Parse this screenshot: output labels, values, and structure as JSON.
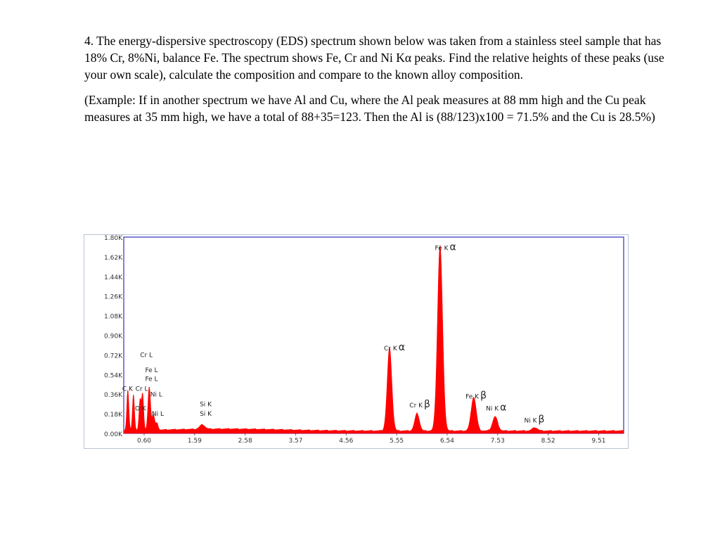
{
  "question": {
    "paragraph1": "4. The energy-dispersive spectroscopy (EDS) spectrum shown below was taken from a stainless steel sample that has 18% Cr, 8%Ni, balance Fe.  The spectrum shows Fe, Cr and Ni Kα peaks.  Find the relative heights of these peaks (use your own scale), calculate the composition and compare to the known alloy composition.",
    "paragraph2": "(Example: If in another spectrum we have Al and Cu, where the Al peak measures at 88 mm high and the Cu peak measures at 35 mm high, we have a total of 88+35=123.  Then the Al is (88/123)x100 = 71.5% and the Cu is 28.5%)"
  },
  "chart_data": {
    "type": "line",
    "style": "filled spectrum",
    "fill_color": "#ff0000",
    "frame_color": "#3030c0",
    "xlabel": "",
    "ylabel": "",
    "x_ticks": [
      0.6,
      1.59,
      2.58,
      3.57,
      4.56,
      5.55,
      6.54,
      7.53,
      8.52,
      9.51
    ],
    "x_tick_labels": [
      "0.60",
      "1.59",
      "2.58",
      "3.57",
      "4.56",
      "5.55",
      "6.54",
      "7.53",
      "8.52",
      "9.51"
    ],
    "y_ticks": [
      0,
      180,
      360,
      540,
      720,
      900,
      1080,
      1260,
      1440,
      1620,
      1800
    ],
    "y_tick_labels": [
      "0.00K",
      "0.18K",
      "0.36K",
      "0.54K",
      "0.72K",
      "0.90K",
      "1.08K",
      "1.26K",
      "1.44K",
      "1.62K",
      "1.80K"
    ],
    "xlim": [
      0.2,
      10.0
    ],
    "ylim": [
      0,
      1800
    ],
    "baseline_counts": 20,
    "peaks": [
      {
        "x": 0.28,
        "height": 370,
        "width": 0.02
      },
      {
        "x": 0.39,
        "height": 330,
        "width": 0.02
      },
      {
        "x": 0.52,
        "height": 280,
        "width": 0.02
      },
      {
        "x": 0.57,
        "height": 330,
        "width": 0.02
      },
      {
        "x": 0.7,
        "height": 400,
        "width": 0.025
      },
      {
        "x": 0.78,
        "height": 140,
        "width": 0.025
      },
      {
        "x": 0.85,
        "height": 60,
        "width": 0.025
      },
      {
        "x": 1.74,
        "height": 40,
        "width": 0.05
      },
      {
        "x": 5.41,
        "height": 760,
        "width": 0.045
      },
      {
        "x": 5.95,
        "height": 160,
        "width": 0.045
      },
      {
        "x": 6.4,
        "height": 1700,
        "width": 0.05
      },
      {
        "x": 7.06,
        "height": 310,
        "width": 0.05
      },
      {
        "x": 7.48,
        "height": 130,
        "width": 0.05
      },
      {
        "x": 8.26,
        "height": 30,
        "width": 0.05
      }
    ],
    "annotations": [
      {
        "text": "Fe K",
        "greek": "α",
        "x": 6.3,
        "y": 1680
      },
      {
        "text": "Cr K",
        "greek": "α",
        "x": 5.3,
        "y": 760
      },
      {
        "text": "Cr L",
        "greek": "",
        "x": 0.52,
        "y": 700
      },
      {
        "text": "Fe L",
        "greek": "",
        "x": 0.62,
        "y": 560
      },
      {
        "text": "Fe L",
        "greek": "",
        "x": 0.62,
        "y": 480
      },
      {
        "text": "C  K",
        "greek": "",
        "x": 0.17,
        "y": 390
      },
      {
        "text": "Cr L",
        "greek": "",
        "x": 0.43,
        "y": 390
      },
      {
        "text": "Ni L",
        "greek": "",
        "x": 0.72,
        "y": 340
      },
      {
        "text": "O  K",
        "greek": "",
        "x": 0.42,
        "y": 210
      },
      {
        "text": "Ni L",
        "greek": "",
        "x": 0.75,
        "y": 160
      },
      {
        "text": "Si K",
        "greek": "",
        "x": 1.69,
        "y": 250
      },
      {
        "text": "Si K",
        "greek": "",
        "x": 1.69,
        "y": 160
      },
      {
        "text": "Cr K",
        "greek": "β",
        "x": 5.8,
        "y": 240
      },
      {
        "text": "Fe K",
        "greek": "β",
        "x": 6.9,
        "y": 320
      },
      {
        "text": "Ni K",
        "greek": "α",
        "x": 7.3,
        "y": 210
      },
      {
        "text": "Ni K",
        "greek": "β",
        "x": 8.05,
        "y": 100
      }
    ]
  }
}
